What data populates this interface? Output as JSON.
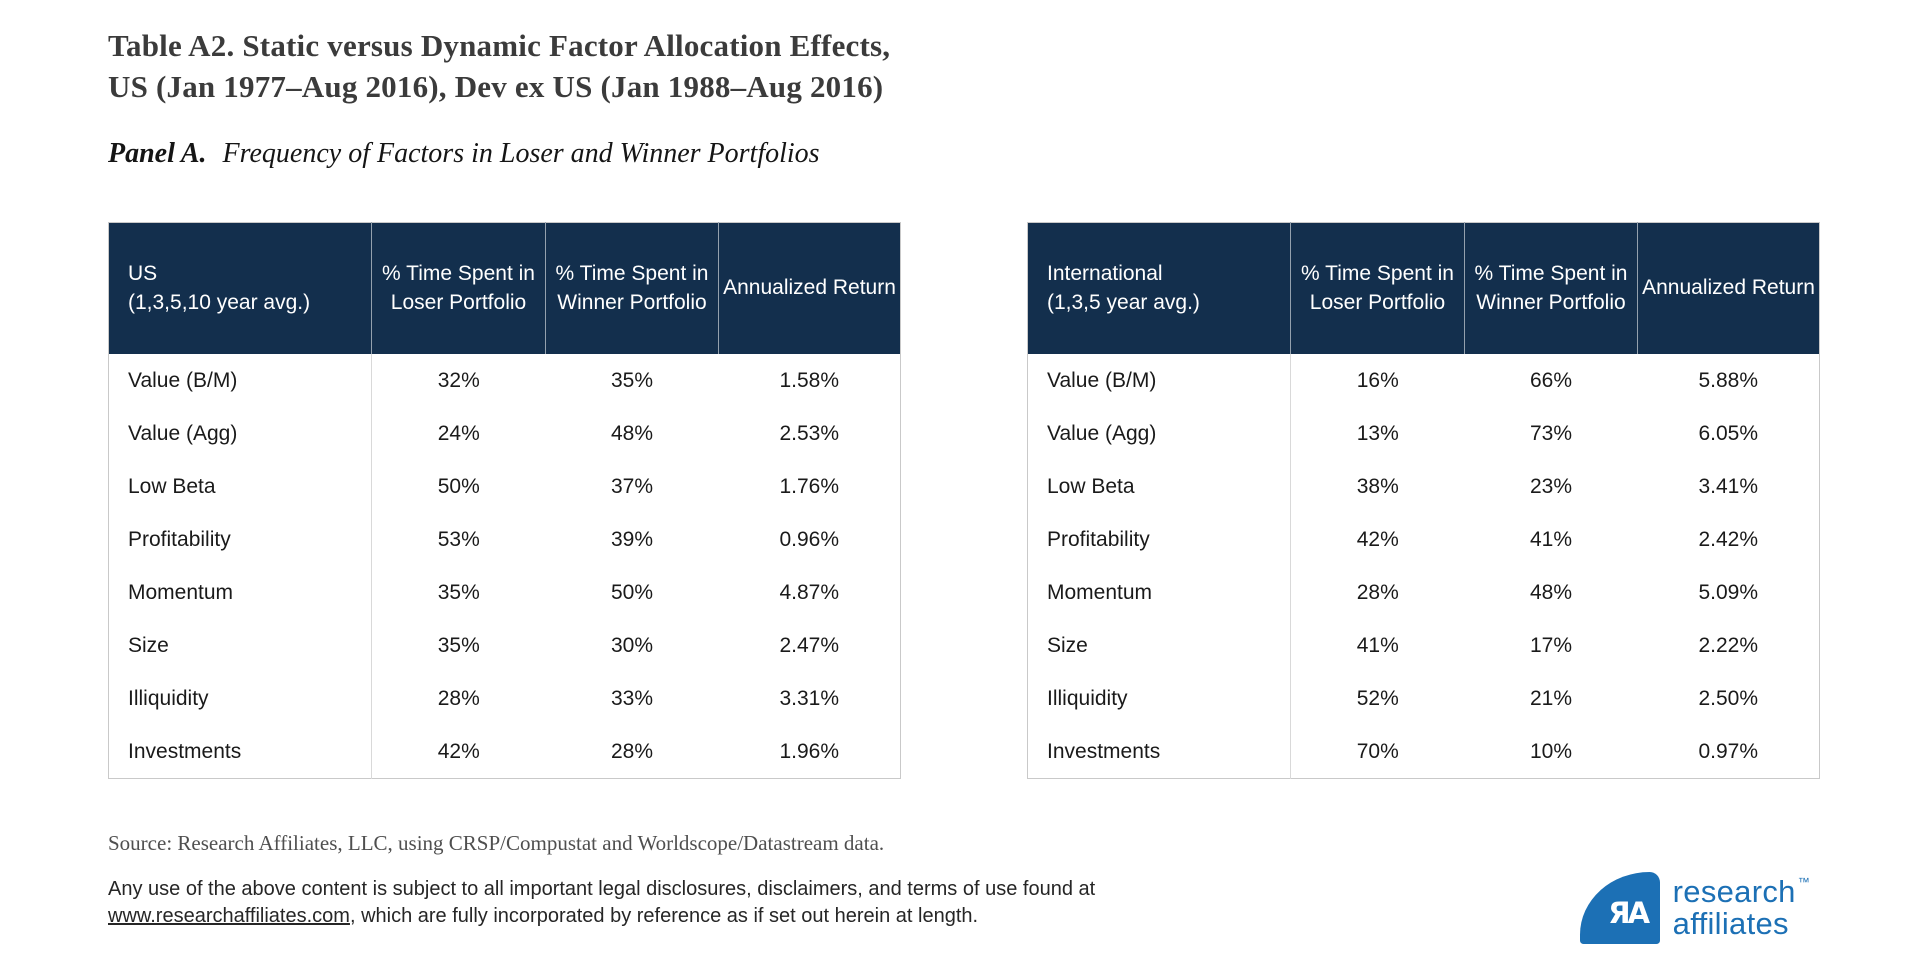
{
  "title": {
    "line1": "Table A2. Static versus Dynamic Factor Allocation Effects,",
    "line2": "US (Jan 1977–Aug 2016), Dev ex US (Jan 1988–Aug 2016)"
  },
  "panel": {
    "label": "Panel A.",
    "description": "Frequency of Factors in Loser and Winner Portfolios"
  },
  "tables": [
    {
      "label_line1": "US",
      "label_line2": "(1,3,5,10 year avg.)",
      "columns": [
        "% Time Spent in Loser Portfolio",
        "% Time Spent in Winner Portfolio",
        "Annualized Return"
      ],
      "rows": [
        {
          "factor": "Value (B/M)",
          "loser": "32%",
          "winner": "35%",
          "annualized": "1.58%"
        },
        {
          "factor": "Value (Agg)",
          "loser": "24%",
          "winner": "48%",
          "annualized": "2.53%"
        },
        {
          "factor": "Low Beta",
          "loser": "50%",
          "winner": "37%",
          "annualized": "1.76%"
        },
        {
          "factor": "Profitability",
          "loser": "53%",
          "winner": "39%",
          "annualized": "0.96%"
        },
        {
          "factor": "Momentum",
          "loser": "35%",
          "winner": "50%",
          "annualized": "4.87%"
        },
        {
          "factor": "Size",
          "loser": "35%",
          "winner": "30%",
          "annualized": "2.47%"
        },
        {
          "factor": "Illiquidity",
          "loser": "28%",
          "winner": "33%",
          "annualized": "3.31%"
        },
        {
          "factor": "Investments",
          "loser": "42%",
          "winner": "28%",
          "annualized": "1.96%"
        }
      ]
    },
    {
      "label_line1": "International",
      "label_line2": "(1,3,5 year avg.)",
      "columns": [
        "% Time Spent in Loser Portfolio",
        "% Time Spent in Winner Portfolio",
        "Annualized Return"
      ],
      "rows": [
        {
          "factor": "Value (B/M)",
          "loser": "16%",
          "winner": "66%",
          "annualized": "5.88%"
        },
        {
          "factor": "Value (Agg)",
          "loser": "13%",
          "winner": "73%",
          "annualized": "6.05%"
        },
        {
          "factor": "Low Beta",
          "loser": "38%",
          "winner": "23%",
          "annualized": "3.41%"
        },
        {
          "factor": "Profitability",
          "loser": "42%",
          "winner": "41%",
          "annualized": "2.42%"
        },
        {
          "factor": "Momentum",
          "loser": "28%",
          "winner": "48%",
          "annualized": "5.09%"
        },
        {
          "factor": "Size",
          "loser": "41%",
          "winner": "17%",
          "annualized": "2.22%"
        },
        {
          "factor": "Illiquidity",
          "loser": "52%",
          "winner": "21%",
          "annualized": "2.50%"
        },
        {
          "factor": "Investments",
          "loser": "70%",
          "winner": "10%",
          "annualized": "0.97%"
        }
      ]
    }
  ],
  "source": "Source: Research Affiliates, LLC, using CRSP/Compustat and Worldscope/Datastream data.",
  "legal": {
    "before_link": "Any use of the above content is subject to all important legal disclosures, disclaimers, and terms of use found at ",
    "link": "www.researchaffiliates.com",
    "after_link": ", which are fully incorporated by reference as if set out herein at length."
  },
  "logo": {
    "monogram": "ЯA",
    "line1": "research",
    "tm": "™",
    "line2": "affiliates"
  },
  "colors": {
    "header_bg": "#132F4D",
    "brand_blue": "#1C70B5",
    "table_border": "#c9c9c9",
    "body_divider": "#d9d9d9",
    "title_text": "#3b3b3b",
    "source_text": "#4f4f4f"
  }
}
